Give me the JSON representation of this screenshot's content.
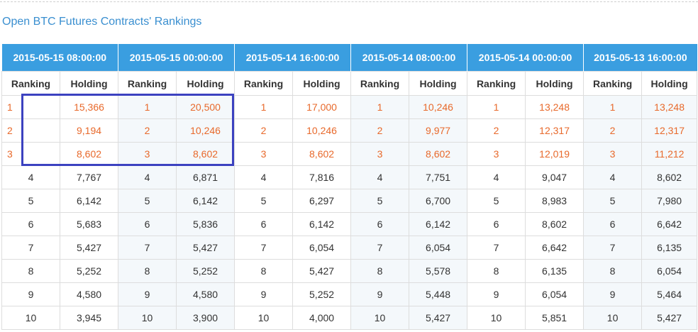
{
  "page": {
    "title": "Open BTC Futures Contracts' Rankings"
  },
  "table": {
    "dates": [
      "2015-05-15 08:00:00",
      "2015-05-15 00:00:00",
      "2015-05-14 16:00:00",
      "2015-05-14 08:00:00",
      "2015-05-14 00:00:00",
      "2015-05-13 16:00:00"
    ],
    "sub_headers": [
      "Ranking",
      "Holding",
      "Ranking",
      "Holding",
      "Ranking",
      "Holding",
      "Ranking",
      "Holding",
      "Ranking",
      "Holding",
      "Ranking",
      "Holding"
    ],
    "rows": [
      [
        "1",
        "15,366",
        "1",
        "20,500",
        "1",
        "17,000",
        "1",
        "10,246",
        "1",
        "13,248",
        "1",
        "13,248"
      ],
      [
        "2",
        "9,194",
        "2",
        "10,246",
        "2",
        "10,246",
        "2",
        "9,977",
        "2",
        "12,317",
        "2",
        "12,317"
      ],
      [
        "3",
        "8,602",
        "3",
        "8,602",
        "3",
        "8,602",
        "3",
        "8,602",
        "3",
        "12,019",
        "3",
        "11,212"
      ],
      [
        "4",
        "7,767",
        "4",
        "6,871",
        "4",
        "7,816",
        "4",
        "7,751",
        "4",
        "9,047",
        "4",
        "8,602"
      ],
      [
        "5",
        "6,142",
        "5",
        "6,142",
        "5",
        "6,297",
        "5",
        "6,700",
        "5",
        "8,983",
        "5",
        "7,980"
      ],
      [
        "6",
        "5,683",
        "6",
        "5,836",
        "6",
        "6,142",
        "6",
        "6,142",
        "6",
        "8,602",
        "6",
        "6,642"
      ],
      [
        "7",
        "5,427",
        "7",
        "5,427",
        "7",
        "6,054",
        "7",
        "6,054",
        "7",
        "6,642",
        "7",
        "6,135"
      ],
      [
        "8",
        "5,252",
        "8",
        "5,252",
        "8",
        "5,427",
        "8",
        "5,578",
        "8",
        "6,135",
        "8",
        "6,054"
      ],
      [
        "9",
        "4,580",
        "9",
        "4,580",
        "9",
        "5,252",
        "9",
        "5,448",
        "9",
        "6,054",
        "9",
        "5,464"
      ],
      [
        "10",
        "3,945",
        "10",
        "3,900",
        "10",
        "4,000",
        "10",
        "5,427",
        "10",
        "5,851",
        "10",
        "5,427"
      ]
    ]
  },
  "colors": {
    "header_bg": "#3a9ee0",
    "title_text": "#3a8fd0",
    "top_rank_text": "#e8692b",
    "highlight_border": "#3c42c0",
    "shaded_column": "#f4f8fb"
  }
}
